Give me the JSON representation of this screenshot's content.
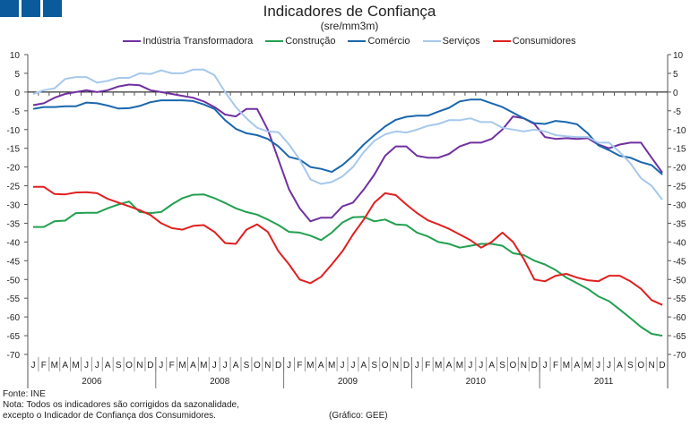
{
  "colors": {
    "logo": "#0a5a9c"
  },
  "chart_data": {
    "type": "line",
    "title": "Indicadores de Confiança",
    "subtitle": "(sre/mm3m)",
    "ylim": [
      -70,
      10
    ],
    "yticks": [
      10,
      5,
      0,
      -5,
      -10,
      -15,
      -20,
      -25,
      -30,
      -35,
      -40,
      -45,
      -50,
      -55,
      -60,
      -65,
      -70
    ],
    "months": [
      "J",
      "F",
      "M",
      "A",
      "M",
      "J",
      "J",
      "A",
      "S",
      "O",
      "N",
      "D"
    ],
    "years": [
      "2006",
      "2008",
      "2009",
      "2010",
      "2011"
    ],
    "legend_position": "top",
    "grid": false,
    "series": [
      {
        "name": "Indústria Transformadora",
        "color": "#7030a0",
        "values": [
          -3.5,
          -3,
          -1.5,
          -0.5,
          0,
          0.5,
          0,
          0.5,
          1.5,
          2,
          1.8,
          0.5,
          0,
          -0.5,
          -1,
          -1.5,
          -2.5,
          -4,
          -6,
          -6.5,
          -4.5,
          -4.5,
          -10,
          -18,
          -26,
          -31,
          -34.5,
          -33.5,
          -33.5,
          -30.5,
          -29.5,
          -26,
          -22,
          -17,
          -14.5,
          -14.5,
          -17,
          -17.5,
          -17.5,
          -16.5,
          -14.5,
          -13.5,
          -13.5,
          -12.5,
          -10,
          -6.5,
          -7,
          -8.5,
          -12,
          -12.5,
          -12.3,
          -12.5,
          -12.3,
          -14,
          -15,
          -14,
          -13.5,
          -13.5,
          -17.5,
          -21.5
        ]
      },
      {
        "name": "Construção",
        "color": "#22a050",
        "values": [
          -36,
          -36,
          -34.5,
          -34.3,
          -32.3,
          -32.2,
          -32.2,
          -31,
          -30,
          -29.2,
          -32,
          -32.3,
          -32,
          -30,
          -28.3,
          -27.4,
          -27.3,
          -28.3,
          -29.6,
          -31,
          -32,
          -32.7,
          -34,
          -35.5,
          -37.3,
          -37.5,
          -38.3,
          -39.5,
          -37.5,
          -34.8,
          -33.4,
          -33.3,
          -34.5,
          -34,
          -35.3,
          -35.5,
          -37.5,
          -38.5,
          -40,
          -40.5,
          -41.5,
          -41,
          -40.5,
          -40.5,
          -41,
          -43,
          -43.5,
          -45,
          -46,
          -47.5,
          -49.5,
          -51,
          -52.5,
          -54.5,
          -55.8,
          -58,
          -60.3,
          -62.7,
          -64.5,
          -65
        ]
      },
      {
        "name": "Comércio",
        "color": "#1a67ad",
        "values": [
          -4.5,
          -4,
          -4,
          -3.8,
          -3.8,
          -2.8,
          -3,
          -3.6,
          -4.4,
          -4.3,
          -3.7,
          -2.7,
          -2.2,
          -2.2,
          -2.2,
          -2.4,
          -3.3,
          -4.5,
          -7.5,
          -9.8,
          -11,
          -11.5,
          -12.5,
          -14.5,
          -17.3,
          -18,
          -20,
          -20.5,
          -21.3,
          -19.5,
          -17,
          -14,
          -11.5,
          -9.2,
          -7.4,
          -6.6,
          -6.3,
          -6.3,
          -5.2,
          -4.2,
          -2.5,
          -2,
          -2,
          -3,
          -4,
          -5.5,
          -7,
          -8.3,
          -8.5,
          -7.7,
          -8,
          -8.6,
          -11,
          -14.2,
          -15.5,
          -17,
          -17.5,
          -18.7,
          -19.5,
          -22
        ]
      },
      {
        "name": "Serviços",
        "color": "#a6c8ec",
        "values": [
          -0.5,
          0.5,
          1,
          3.5,
          4,
          4,
          2.5,
          3,
          3.8,
          3.8,
          5,
          4.8,
          5.8,
          5,
          5,
          6,
          6,
          4.5,
          0,
          -4,
          -7,
          -9.5,
          -10.5,
          -10.7,
          -14,
          -18,
          -23.3,
          -24.5,
          -24,
          -22.5,
          -20,
          -16,
          -13,
          -11.3,
          -10.5,
          -10.8,
          -10,
          -9,
          -8.5,
          -7.5,
          -7.5,
          -7,
          -8,
          -8,
          -9.5,
          -10,
          -10.5,
          -10,
          -10.5,
          -11.5,
          -11.8,
          -12,
          -12,
          -13.5,
          -13.5,
          -16,
          -19,
          -23,
          -25,
          -28.7
        ]
      },
      {
        "name": "Consumidores",
        "color": "#e02020",
        "values": [
          -25.3,
          -25.3,
          -27.2,
          -27.3,
          -26.8,
          -26.7,
          -27,
          -28.5,
          -29.5,
          -30.5,
          -31.5,
          -32.8,
          -35,
          -36.3,
          -36.7,
          -35.7,
          -35.5,
          -37.3,
          -40.3,
          -40.5,
          -36.7,
          -35.3,
          -37.3,
          -42.5,
          -46,
          -50,
          -51,
          -49.3,
          -46,
          -42.5,
          -38,
          -34,
          -29.5,
          -27,
          -27.5,
          -30,
          -32.3,
          -34.2,
          -35.3,
          -36.5,
          -38,
          -39.5,
          -41.5,
          -40,
          -37.5,
          -40,
          -44.5,
          -50,
          -50.5,
          -49,
          -48.5,
          -49.5,
          -50.2,
          -50.5,
          -49,
          -49,
          -50.5,
          -52.5,
          -55.5,
          -56.8
        ]
      }
    ]
  },
  "notes": {
    "source": "Fonte: INE",
    "note1": "Nota: Todos os indicadores são corrigidos da sazonalidade,",
    "note2": "excepto o Indicador de Confiança dos Consumidores.",
    "credit": "(Gráfico: GEE)"
  }
}
